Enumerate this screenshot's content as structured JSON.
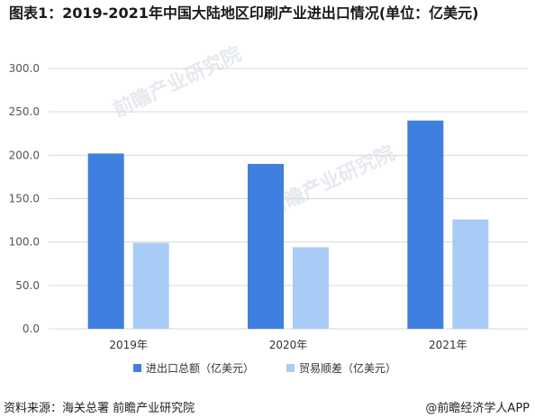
{
  "title": "图表1：2019-2021年中国大陆地区印刷产业进出口情况(单位：亿美元)",
  "watermark": "前瞻产业研究院",
  "footer": {
    "source": "资料来源：海关总署 前瞻产业研究院",
    "brand": "@前瞻经济学人APP"
  },
  "colors": {
    "series1": "#3f7fe0",
    "series2": "#a9ccf7",
    "grid": "#d9d9d9"
  },
  "chart_data": {
    "type": "bar",
    "categories": [
      "2019年",
      "2020年",
      "2021年"
    ],
    "series": [
      {
        "name": "进出口总额（亿美元）",
        "values": [
          202,
          190,
          240
        ]
      },
      {
        "name": "贸易顺差（亿美元）",
        "values": [
          99,
          94,
          126
        ]
      }
    ],
    "ylim": [
      0,
      300
    ],
    "yticks": [
      "0.0",
      "50.0",
      "100.0",
      "150.0",
      "200.0",
      "250.0",
      "300.0"
    ],
    "grid": true,
    "legend": "bottom"
  }
}
